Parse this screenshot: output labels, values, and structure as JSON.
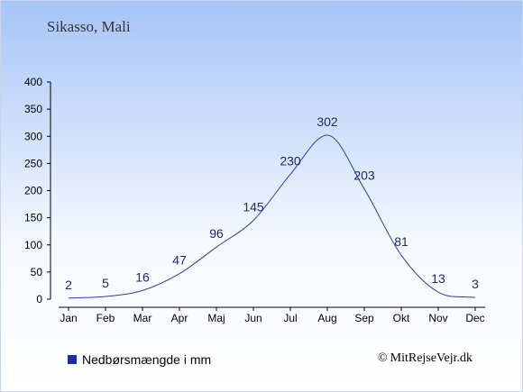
{
  "location_title": "Sikasso, Mali",
  "colors": {
    "line": "#2c3fa6",
    "swatch": "#1a2aa8",
    "label": "#1f2a66"
  },
  "chart_data": {
    "type": "line",
    "categories": [
      "Jan",
      "Feb",
      "Mar",
      "Apr",
      "Maj",
      "Jun",
      "Jul",
      "Aug",
      "Sep",
      "Okt",
      "Nov",
      "Dec"
    ],
    "series": [
      {
        "name": "Nedbørsmængde i mm",
        "values": [
          2,
          5,
          16,
          47,
          96,
          145,
          230,
          302,
          203,
          81,
          13,
          3
        ]
      }
    ],
    "y_ticks": [
      0,
      50,
      100,
      150,
      200,
      250,
      300,
      350,
      400
    ],
    "ylim": [
      0,
      400
    ],
    "grid": false,
    "legend_position": "bottom-left"
  },
  "legend": {
    "label": "Nedbørsmængde i mm"
  },
  "footer": {
    "copyright_symbol": "©",
    "site": "MitRejseVejr.dk"
  }
}
